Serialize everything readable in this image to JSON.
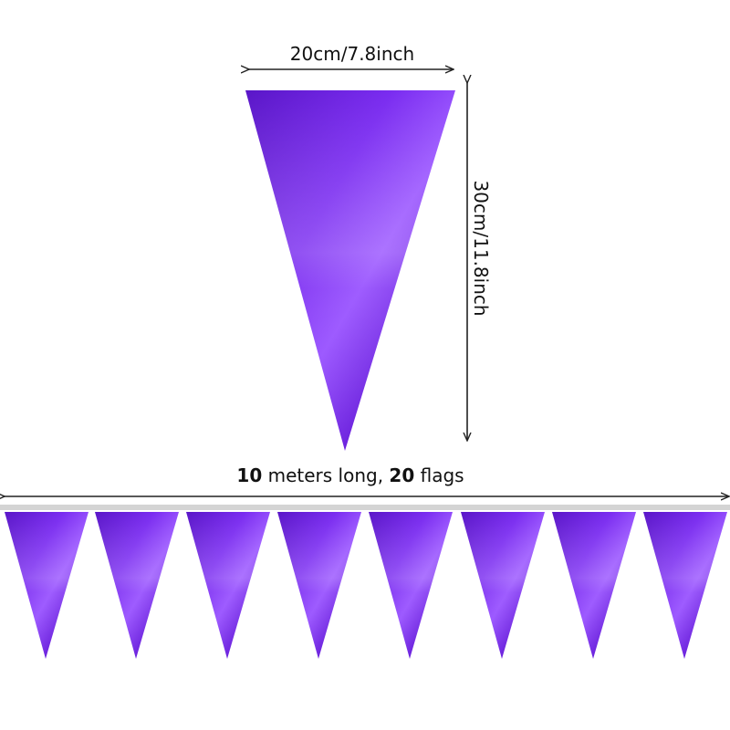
{
  "dimensions": {
    "width_label": "20cm/7.8inch",
    "height_label": "30cm/11.8inch"
  },
  "bunting": {
    "length_number": "10",
    "length_text": " meters long, ",
    "flags_number": "20",
    "flags_text": " flags"
  },
  "colors": {
    "flag_dark": "#5a16c8",
    "flag_mid": "#7a2cf0",
    "flag_light": "#9a55ff",
    "string": "#cfcfcf",
    "arrow": "#222222"
  }
}
